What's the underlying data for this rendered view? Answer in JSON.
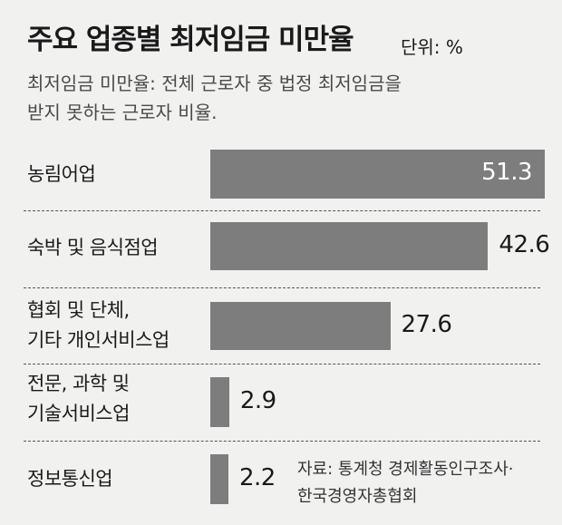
{
  "title": "주요 업종별 최저임금 미만율",
  "unit": "단위: %",
  "subtitle": {
    "line1": "최저임금 미만율: 전체 근로자 중 법정 최저임금을",
    "line2": "받지 못하는 근로자 비율."
  },
  "source": {
    "line1": "자료: 통계청 경제활동인구조사·",
    "line2": "한국경영자총협회"
  },
  "chart_data": {
    "type": "bar",
    "orientation": "horizontal",
    "title": "주요 업종별 최저임금 미만율",
    "unit": "%",
    "categories": [
      [
        "농림어업"
      ],
      [
        "숙박 및 음식점업"
      ],
      [
        "협회 및 단체,",
        "기타 개인서비스업"
      ],
      [
        "전문, 과학 및",
        "기술서비스업"
      ],
      [
        "정보통신업"
      ]
    ],
    "values": [
      51.3,
      42.6,
      27.6,
      2.9,
      2.2
    ],
    "value_labels": [
      "51.3",
      "42.6",
      "27.6",
      "2.9",
      "2.2"
    ],
    "grid": false,
    "bar_color": "#7d7d7d"
  }
}
